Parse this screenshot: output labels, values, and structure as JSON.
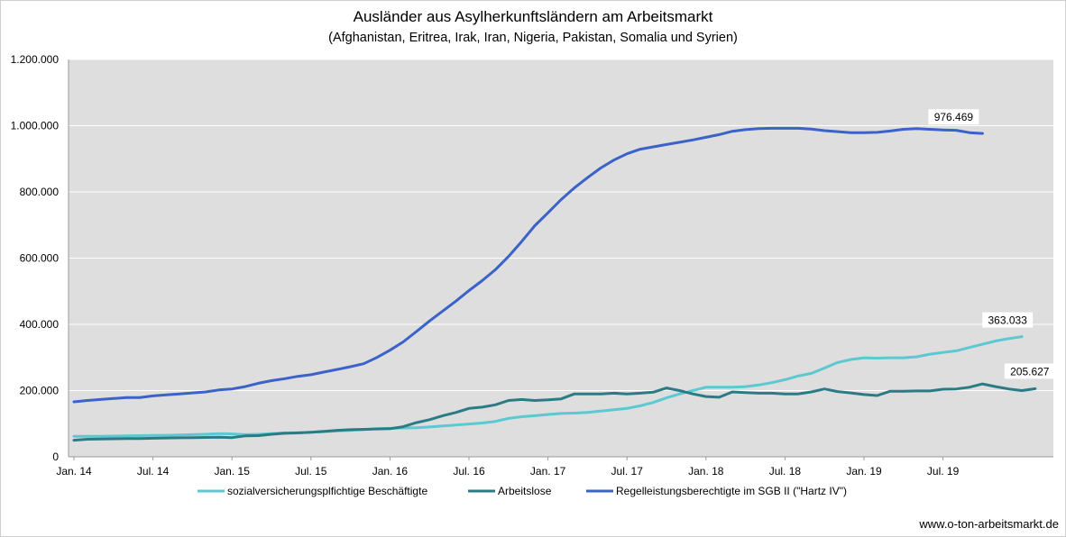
{
  "chart_data": {
    "type": "line",
    "title": "Ausländer aus Asylherkunftsländern am Arbeitsmarkt",
    "subtitle": "(Afghanistan,  Eritrea, Irak, Iran,  Nigeria, Pakistan, Somalia und Syrien)",
    "ylim": [
      0,
      1200000
    ],
    "yticks": [
      "0",
      "200.000",
      "400.000",
      "600.000",
      "800.000",
      "1.000.000",
      "1.200.000"
    ],
    "xticks": [
      "Jan. 14",
      "Jul. 14",
      "Jan. 15",
      "Jul. 15",
      "Jan. 16",
      "Jul. 16",
      "Jan. 17",
      "Jul. 17",
      "Jan. 18",
      "Jul. 18",
      "Jan. 19",
      "Jul. 19"
    ],
    "x_start": "2014-01",
    "grid": "horizontal",
    "legend_position": "bottom",
    "source_text": "www.o-ton-arbeitsmarkt.de",
    "series": [
      {
        "name": "sozialversicherungsplfichtige Beschäftigte",
        "color": "#5bc8d2",
        "end_label": "363.033",
        "values": [
          62000,
          62000,
          62000,
          62500,
          63000,
          64000,
          64500,
          65000,
          66000,
          67000,
          68000,
          70000,
          69000,
          67000,
          68000,
          70000,
          72000,
          73000,
          74000,
          76000,
          78000,
          80000,
          82000,
          85000,
          86000,
          87000,
          88000,
          90000,
          93000,
          96000,
          99000,
          102000,
          107000,
          116000,
          121000,
          124000,
          128000,
          131000,
          132000,
          134000,
          138000,
          142000,
          146000,
          154000,
          164000,
          178000,
          190000,
          200000,
          210000,
          210000,
          210000,
          212000,
          217000,
          224000,
          233000,
          244000,
          252000,
          268000,
          285000,
          294000,
          299000,
          298000,
          299000,
          299000,
          302000,
          310000,
          315000,
          320000,
          330000,
          340000,
          350000,
          357000,
          363033
        ]
      },
      {
        "name": "Arbeitslose",
        "color": "#2b7b85",
        "end_label": "205.627",
        "values": [
          50000,
          53000,
          54000,
          54500,
          55000,
          55000,
          56000,
          57000,
          57500,
          58000,
          58500,
          59000,
          58000,
          63000,
          64000,
          68000,
          71000,
          72000,
          74000,
          77000,
          80000,
          82000,
          83000,
          84000,
          85000,
          91000,
          103000,
          112000,
          124000,
          134000,
          146000,
          150000,
          157000,
          170000,
          173000,
          170000,
          172000,
          175000,
          190000,
          190000,
          190000,
          192000,
          190000,
          192000,
          195000,
          208000,
          200000,
          190000,
          182000,
          180000,
          196000,
          194000,
          192000,
          192000,
          190000,
          190000,
          196000,
          205000,
          197000,
          193000,
          188000,
          185000,
          198000,
          198000,
          199000,
          199000,
          204000,
          205000,
          210000,
          220000,
          212000,
          205000,
          200000,
          205627
        ]
      },
      {
        "name": "Regelleistungsberechtigte im SGB II (\"Hartz IV\")",
        "color": "#3a62c8",
        "end_label": "976.469",
        "values": [
          166000,
          170000,
          173000,
          176000,
          179000,
          179000,
          184000,
          187000,
          190000,
          193000,
          196000,
          202000,
          205000,
          212000,
          222000,
          230000,
          236000,
          243000,
          248000,
          256000,
          264000,
          272000,
          281000,
          300000,
          322000,
          347000,
          378000,
          410000,
          440000,
          470000,
          502000,
          532000,
          565000,
          605000,
          650000,
          698000,
          737000,
          777000,
          812000,
          843000,
          872000,
          896000,
          915000,
          929000,
          936000,
          943000,
          950000,
          957000,
          965000,
          973000,
          983000,
          988000,
          991000,
          992000,
          992000,
          992000,
          990000,
          985000,
          982000,
          979000,
          979000,
          980000,
          984000,
          989000,
          991000,
          989000,
          987000,
          986000,
          979000,
          976469
        ]
      }
    ]
  }
}
